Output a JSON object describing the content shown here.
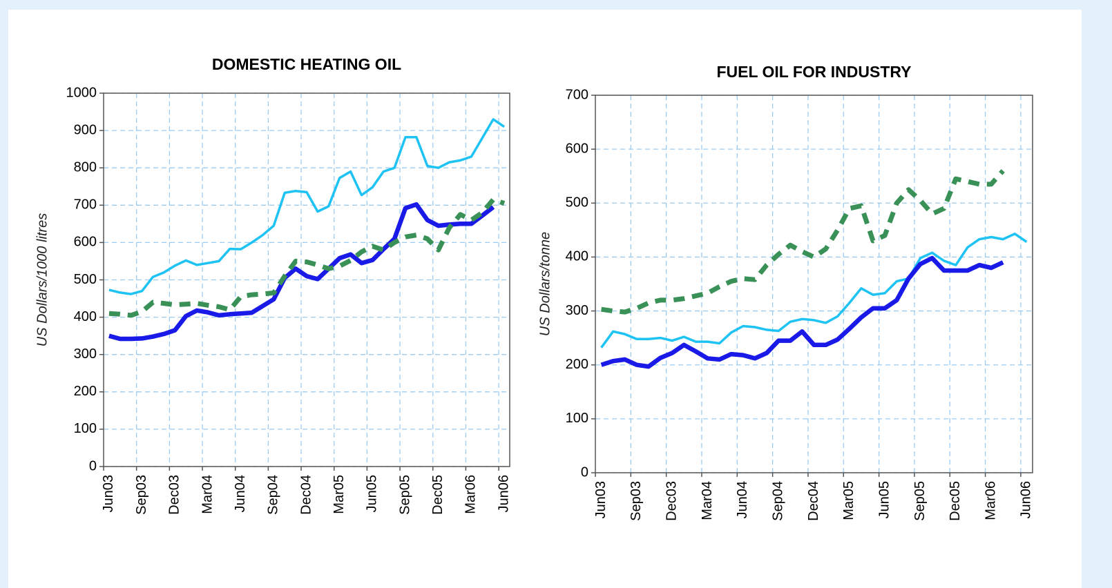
{
  "chart_data": [
    {
      "type": "line",
      "title": "DOMESTIC HEATING OIL",
      "ylabel": "US Dollars/1000 litres",
      "categories": [
        "Jun03",
        null,
        null,
        "Sep03",
        null,
        null,
        "Dec03",
        null,
        null,
        "Mar04",
        null,
        null,
        "Jun04",
        null,
        null,
        "Sep04",
        null,
        null,
        "Dec04",
        null,
        null,
        "Mar05",
        null,
        null,
        "Jun05",
        null,
        null,
        "Sep05",
        null,
        null,
        "Dec05",
        null,
        null,
        "Mar06",
        null,
        null,
        "Jun06"
      ],
      "series": [
        {
          "color": "#1ec3f4",
          "style": "thin",
          "values": [
            473,
            466,
            462,
            470,
            508,
            520,
            538,
            552,
            540,
            545,
            550,
            583,
            582,
            600,
            620,
            645,
            733,
            738,
            735,
            683,
            697,
            773,
            790,
            727,
            748,
            790,
            800,
            882,
            882,
            805,
            800,
            815,
            820,
            830,
            880,
            930,
            910
          ]
        },
        {
          "color": "#1a1ae8",
          "style": "thick",
          "values": [
            350,
            342,
            342,
            343,
            348,
            355,
            365,
            403,
            418,
            413,
            405,
            408,
            410,
            412,
            430,
            448,
            505,
            530,
            510,
            502,
            530,
            558,
            568,
            545,
            553,
            582,
            610,
            692,
            702,
            660,
            645,
            648,
            650,
            650,
            672,
            695,
            null
          ]
        },
        {
          "color": "#3a9158",
          "style": "dashed",
          "values": [
            410,
            408,
            405,
            415,
            440,
            437,
            433,
            435,
            437,
            432,
            428,
            420,
            455,
            460,
            462,
            465,
            510,
            550,
            548,
            540,
            530,
            537,
            552,
            575,
            590,
            580,
            600,
            615,
            620,
            610,
            580,
            640,
            675,
            660,
            680,
            715,
            705
          ]
        }
      ],
      "ylim": [
        0,
        1000
      ],
      "yticks": [
        0,
        100,
        200,
        300,
        400,
        500,
        600,
        700,
        800,
        900,
        1000
      ],
      "grid": true
    },
    {
      "type": "line",
      "title": "FUEL OIL FOR INDUSTRY",
      "ylabel": "US Dollars/tonne",
      "categories": [
        "Jun03",
        null,
        null,
        "Sep03",
        null,
        null,
        "Dec03",
        null,
        null,
        "Mar04",
        null,
        null,
        "Jun04",
        null,
        null,
        "Sep04",
        null,
        null,
        "Dec04",
        null,
        null,
        "Mar05",
        null,
        null,
        "Jun05",
        null,
        null,
        "Sep05",
        null,
        null,
        "Dec05",
        null,
        null,
        "Mar06",
        null,
        null,
        "Jun06"
      ],
      "series": [
        {
          "color": "#1ec3f4",
          "style": "thin",
          "values": [
            232,
            262,
            257,
            248,
            248,
            250,
            245,
            252,
            243,
            243,
            240,
            260,
            272,
            270,
            265,
            263,
            280,
            285,
            283,
            278,
            290,
            315,
            342,
            330,
            333,
            355,
            360,
            398,
            408,
            393,
            385,
            418,
            433,
            437,
            433,
            443,
            428
          ]
        },
        {
          "color": "#1a1ae8",
          "style": "thick",
          "values": [
            200,
            207,
            210,
            200,
            197,
            213,
            222,
            237,
            225,
            212,
            210,
            220,
            218,
            212,
            222,
            245,
            245,
            262,
            237,
            237,
            247,
            267,
            288,
            305,
            305,
            320,
            360,
            387,
            398,
            375,
            375,
            375,
            385,
            380,
            390,
            null,
            null
          ]
        },
        {
          "color": "#3a9158",
          "style": "dashed",
          "values": [
            303,
            300,
            298,
            305,
            315,
            320,
            320,
            323,
            328,
            333,
            345,
            355,
            360,
            358,
            385,
            405,
            422,
            410,
            400,
            415,
            450,
            490,
            495,
            430,
            440,
            500,
            525,
            505,
            480,
            490,
            545,
            540,
            535,
            535,
            560,
            null,
            null
          ]
        }
      ],
      "ylim": [
        0,
        700
      ],
      "yticks": [
        0,
        100,
        200,
        300,
        400,
        500,
        600,
        700
      ],
      "grid": true
    }
  ]
}
